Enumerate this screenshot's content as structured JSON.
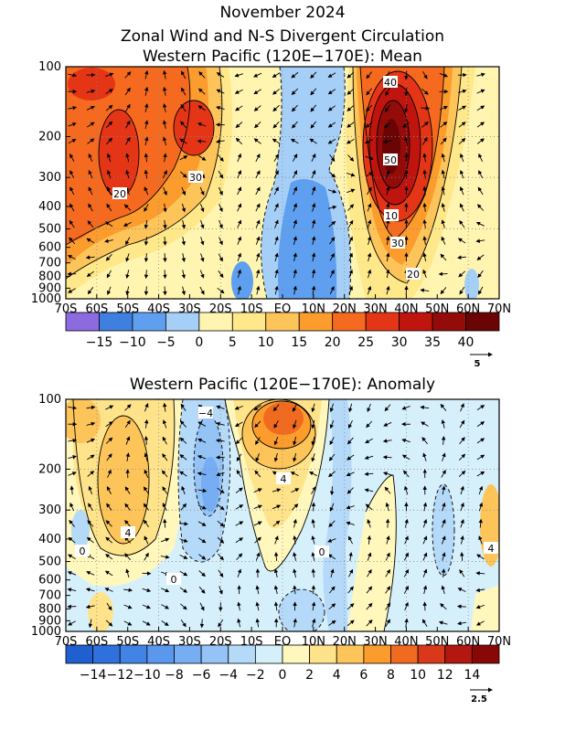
{
  "header": {
    "line1": "November 2024",
    "line2": "Zonal Wind and N-S Divergent Circulation"
  },
  "chart_data": [
    {
      "type": "heatmap",
      "title": "Western Pacific (120E−170E): Mean",
      "x_ticks": [
        "70S",
        "60S",
        "50S",
        "40S",
        "30S",
        "20S",
        "10S",
        "EQ",
        "10N",
        "20N",
        "30N",
        "40N",
        "50N",
        "60N",
        "70N"
      ],
      "y_ticks": [
        "100",
        "200",
        "300",
        "400",
        "500",
        "600",
        "700",
        "800",
        "900",
        "1000"
      ],
      "y_values": [
        100,
        200,
        300,
        400,
        500,
        600,
        700,
        800,
        900,
        1000
      ],
      "xlim": [
        -70,
        70
      ],
      "ylim": [
        1000,
        100
      ],
      "contour_labels": [
        "40",
        "50",
        "30",
        "20",
        "10",
        "30",
        "20"
      ],
      "colorbar": {
        "levels": [
          "−15",
          "−10",
          "−5",
          "0",
          "5",
          "10",
          "15",
          "20",
          "25",
          "30",
          "35",
          "40"
        ],
        "colors": [
          "#8c6be0",
          "#3f7fe0",
          "#5f9fef",
          "#a6cff7",
          "#fff5b0",
          "#ffe88a",
          "#fdc45a",
          "#fb9c2c",
          "#f56a1f",
          "#e43517",
          "#c0150f",
          "#930c0a",
          "#6b0505"
        ]
      },
      "reference_vector": "5"
    },
    {
      "type": "heatmap",
      "title": "Western Pacific (120E−170E): Anomaly",
      "x_ticks": [
        "70S",
        "60S",
        "50S",
        "40S",
        "30S",
        "20S",
        "10S",
        "EQ",
        "10N",
        "20N",
        "30N",
        "40N",
        "50N",
        "60N",
        "70N"
      ],
      "y_ticks": [
        "100",
        "200",
        "300",
        "400",
        "500",
        "600",
        "700",
        "800",
        "900",
        "1000"
      ],
      "y_values": [
        100,
        200,
        300,
        400,
        500,
        600,
        700,
        800,
        900,
        1000
      ],
      "xlim": [
        -70,
        70
      ],
      "ylim": [
        1000,
        100
      ],
      "contour_labels": [
        "−4",
        "4",
        "4",
        "0",
        "0",
        "0",
        "4"
      ],
      "colorbar": {
        "levels": [
          "−14",
          "−12",
          "−10",
          "−8",
          "−6",
          "−4",
          "−2",
          "0",
          "2",
          "4",
          "6",
          "8",
          "10",
          "12",
          "14"
        ],
        "colors": [
          "#1f5fcf",
          "#2e70dc",
          "#4284e6",
          "#5a98ee",
          "#76adf3",
          "#94c3f6",
          "#b5daf9",
          "#d6f0fb",
          "#fff7bc",
          "#ffe38a",
          "#fdc45a",
          "#fb9c2c",
          "#f06a1f",
          "#d9391a",
          "#b41610",
          "#870806"
        ]
      },
      "reference_vector": "2.5"
    }
  ]
}
